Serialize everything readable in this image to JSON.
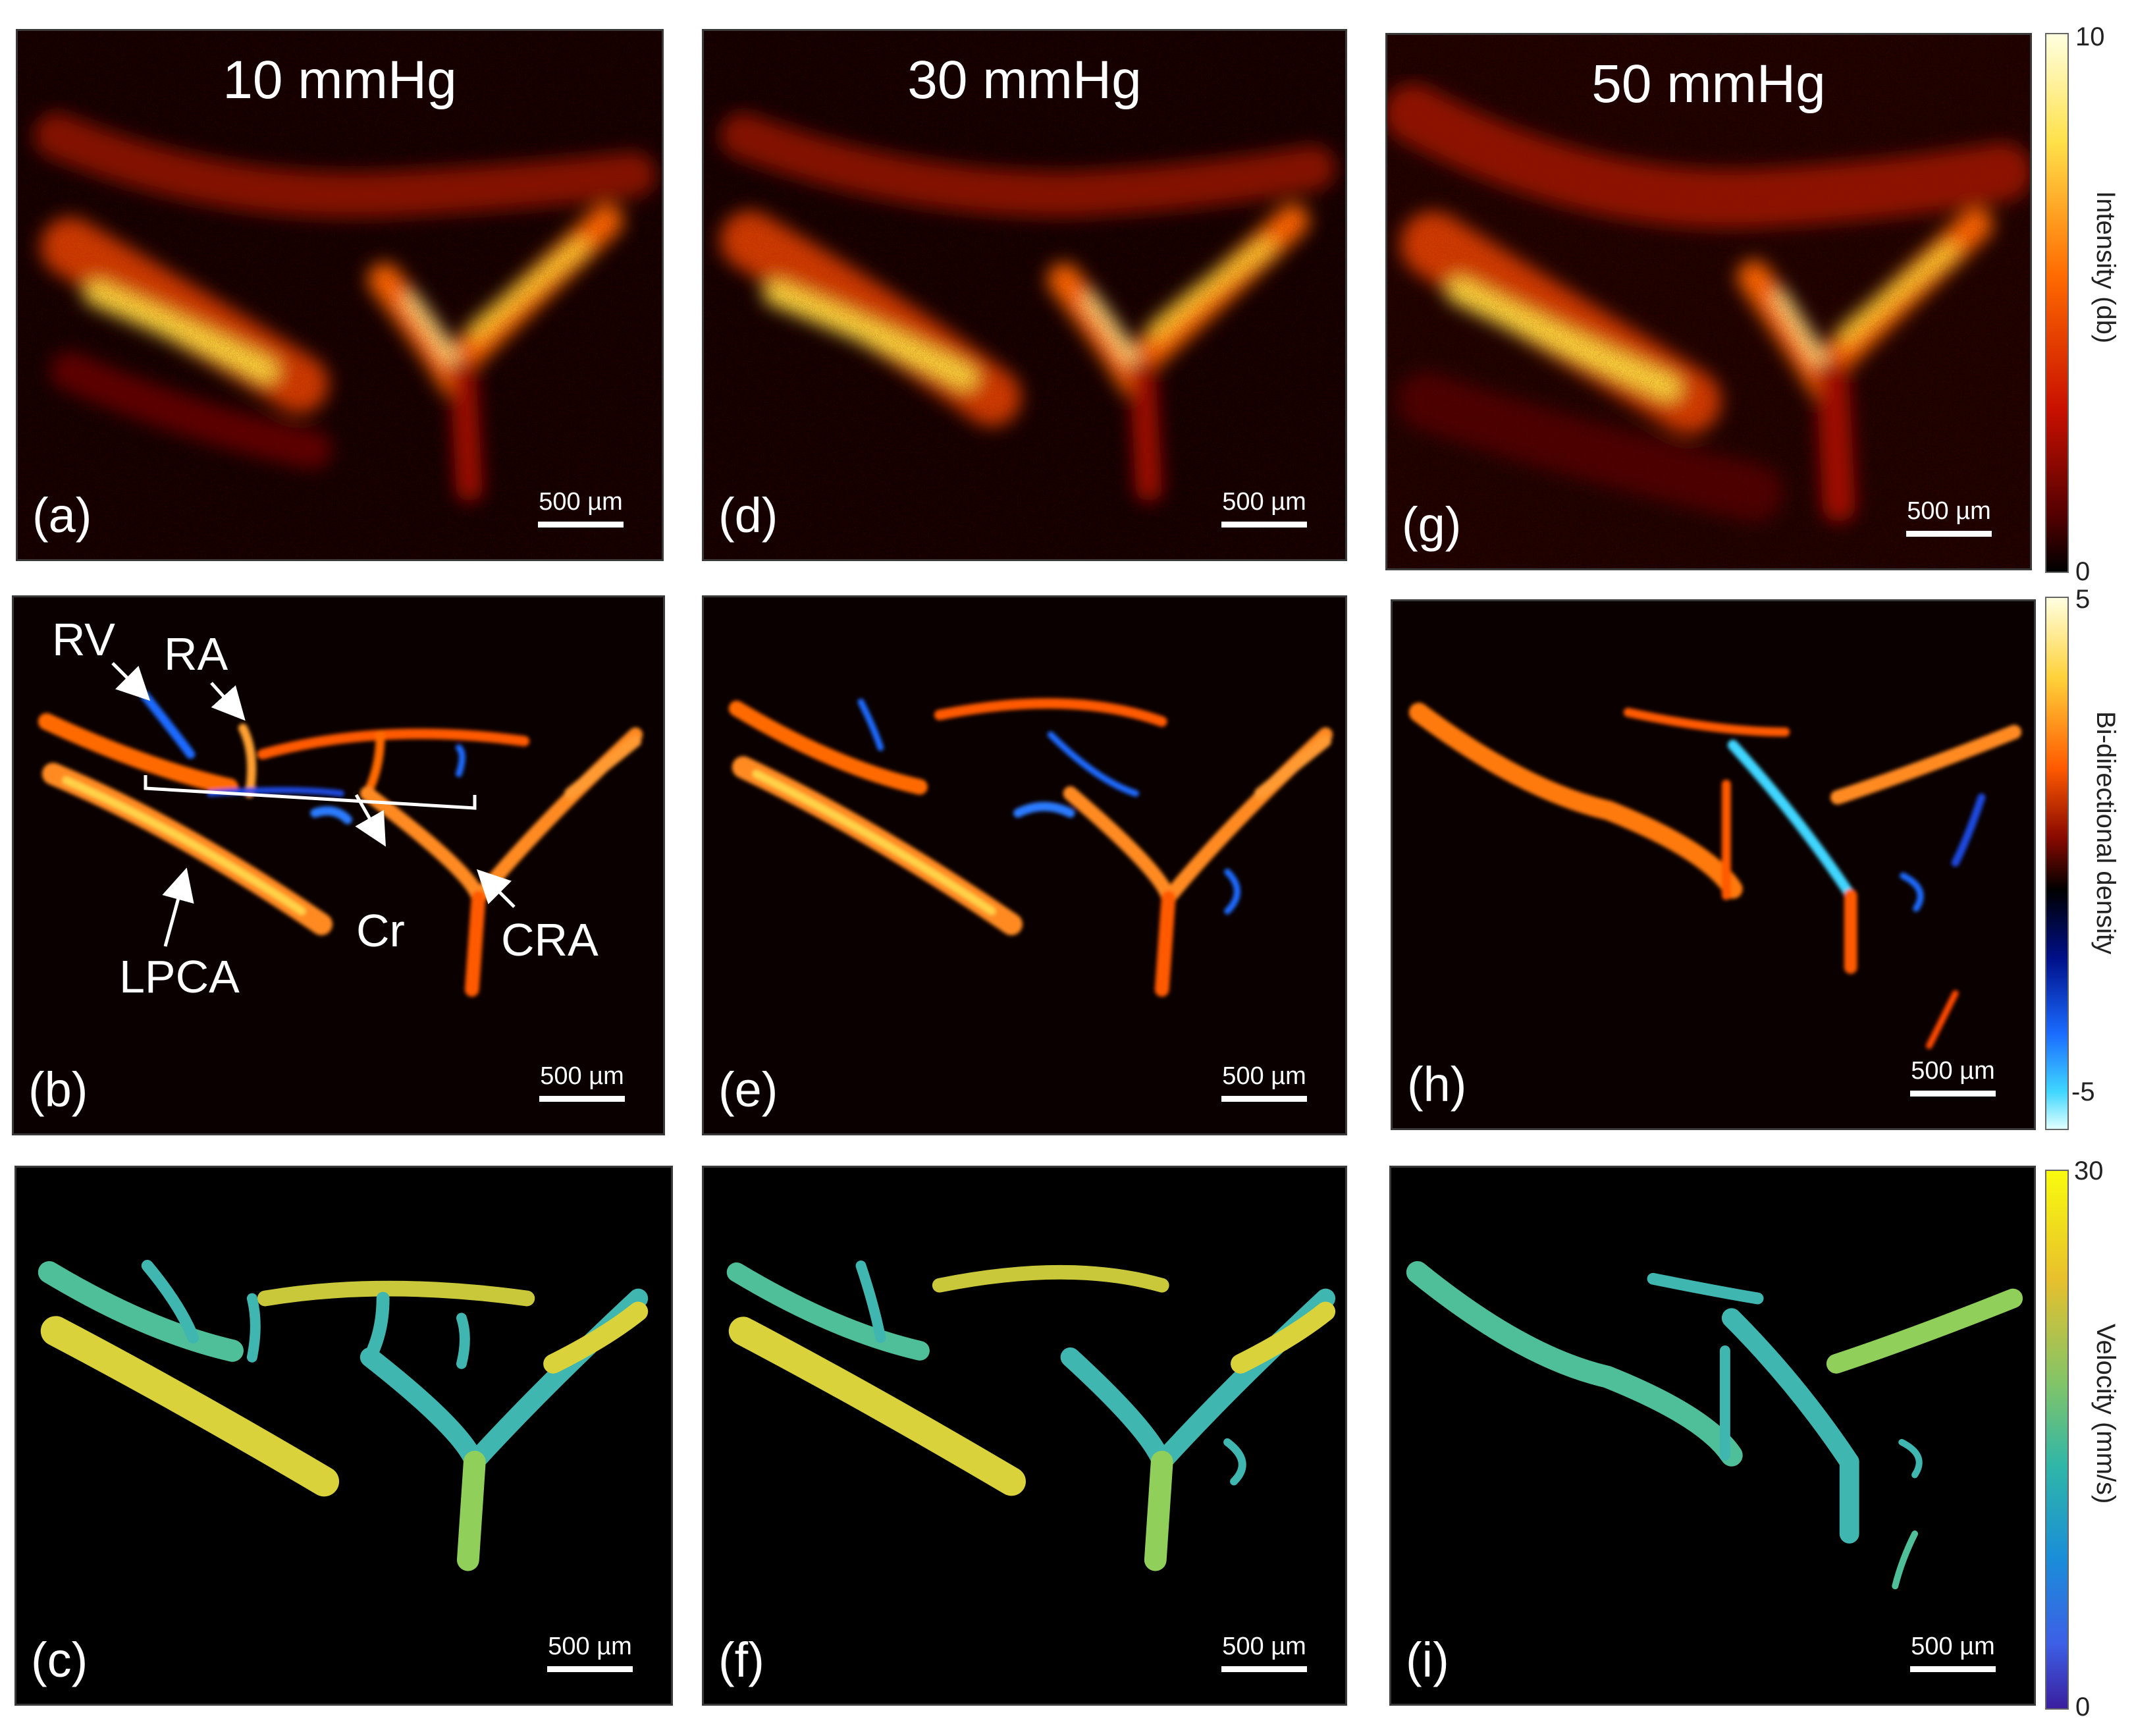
{
  "column_titles": [
    "10 mmHg",
    "30 mmHg",
    "50 mmHg"
  ],
  "panel_labels": {
    "a": "(a)",
    "b": "(b)",
    "c": "(c)",
    "d": "(d)",
    "e": "(e)",
    "f": "(f)",
    "g": "(g)",
    "h": "(h)",
    "i": "(i)"
  },
  "scale_bar_label": "500 µm",
  "annotations": {
    "rv": "RV",
    "ra": "RA",
    "cr": "Cr",
    "cra": "CRA",
    "lpca": "LPCA"
  },
  "colorbars": {
    "intensity": {
      "title": "Intensity (db)",
      "max": "10",
      "min": "0"
    },
    "density": {
      "title": "Bi-directional density",
      "max": "5",
      "min": "-5"
    },
    "velocity": {
      "title": "Velocity (mm/s)",
      "max": "30",
      "min": "0"
    }
  },
  "colors": {
    "hot_bright": "#ffe14a",
    "hot_mid": "#ff5a00",
    "hot_dark": "#8a0a00",
    "flow_blue": "#1a6bff",
    "velocity_teal": "#3fb6b0",
    "velocity_yellow": "#d9d23a"
  }
}
